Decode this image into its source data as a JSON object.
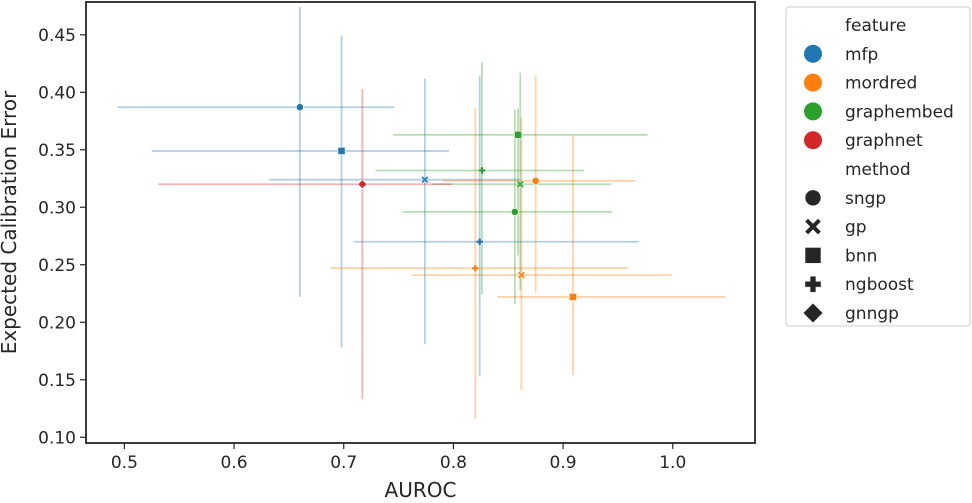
{
  "chart_data": {
    "type": "scatter",
    "title": "",
    "xlabel": "AUROC",
    "ylabel": "Expected Calibration Error",
    "xlim": [
      0.465,
      1.075
    ],
    "ylim": [
      0.095,
      0.4785
    ],
    "xticks": [
      "0.5",
      "0.6",
      "0.7",
      "0.8",
      "0.9",
      "1.0"
    ],
    "yticks": [
      "0.10",
      "0.15",
      "0.20",
      "0.25",
      "0.30",
      "0.35",
      "0.40",
      "0.45"
    ],
    "xtick_values": [
      0.5,
      0.6,
      0.7,
      0.8,
      0.9,
      1.0
    ],
    "ytick_values": [
      0.1,
      0.15,
      0.2,
      0.25,
      0.3,
      0.35,
      0.4,
      0.45
    ],
    "grid": false,
    "legend_position": "outside-right",
    "legend": {
      "hue_title": "feature",
      "hue_entries": [
        {
          "label": "mfp",
          "color": "#1f77b4"
        },
        {
          "label": "mordred",
          "color": "#ff7f0e"
        },
        {
          "label": "graphembed",
          "color": "#2ca02c"
        },
        {
          "label": "graphnet",
          "color": "#d62728"
        }
      ],
      "style_title": "method",
      "style_entries": [
        {
          "label": "sngp",
          "marker": "circle"
        },
        {
          "label": "gp",
          "marker": "x"
        },
        {
          "label": "bnn",
          "marker": "square"
        },
        {
          "label": "ngboost",
          "marker": "plus"
        },
        {
          "label": "gnngp",
          "marker": "diamond"
        }
      ]
    },
    "points": [
      {
        "feature": "mfp",
        "method": "sngp",
        "color": "#1f77b4",
        "x": 0.66,
        "y": 0.387,
        "x_err": [
          0.494,
          0.746
        ],
        "y_err": [
          0.222,
          0.474
        ]
      },
      {
        "feature": "mfp",
        "method": "bnn",
        "color": "#1f77b4",
        "x": 0.698,
        "y": 0.349,
        "x_err": [
          0.525,
          0.796
        ],
        "y_err": [
          0.178,
          0.449
        ]
      },
      {
        "feature": "mfp",
        "method": "gp",
        "color": "#1f77b4",
        "x": 0.774,
        "y": 0.324,
        "x_err": [
          0.632,
          0.86
        ],
        "y_err": [
          0.181,
          0.412
        ]
      },
      {
        "feature": "mfp",
        "method": "ngboost",
        "color": "#1f77b4",
        "x": 0.824,
        "y": 0.27,
        "x_err": [
          0.709,
          0.969
        ],
        "y_err": [
          0.153,
          0.414
        ]
      },
      {
        "feature": "mordred",
        "method": "sngp",
        "color": "#ff7f0e",
        "x": 0.875,
        "y": 0.323,
        "x_err": [
          0.79,
          0.966
        ],
        "y_err": [
          0.226,
          0.414
        ]
      },
      {
        "feature": "mordred",
        "method": "ngboost",
        "color": "#ff7f0e",
        "x": 0.82,
        "y": 0.247,
        "x_err": [
          0.688,
          0.959
        ],
        "y_err": [
          0.116,
          0.386
        ]
      },
      {
        "feature": "mordred",
        "method": "gp",
        "color": "#ff7f0e",
        "x": 0.862,
        "y": 0.241,
        "x_err": [
          0.762,
          0.999
        ],
        "y_err": [
          0.141,
          0.378
        ]
      },
      {
        "feature": "mordred",
        "method": "bnn",
        "color": "#ff7f0e",
        "x": 0.909,
        "y": 0.222,
        "x_err": [
          0.84,
          1.048
        ],
        "y_err": [
          0.154,
          0.362
        ]
      },
      {
        "feature": "graphembed",
        "method": "bnn",
        "color": "#2ca02c",
        "x": 0.859,
        "y": 0.363,
        "x_err": [
          0.745,
          0.977
        ],
        "y_err": [
          0.258,
          0.386
        ]
      },
      {
        "feature": "graphembed",
        "method": "ngboost",
        "color": "#2ca02c",
        "x": 0.826,
        "y": 0.332,
        "x_err": [
          0.729,
          0.919
        ],
        "y_err": [
          0.224,
          0.426
        ]
      },
      {
        "feature": "graphembed",
        "method": "gp",
        "color": "#2ca02c",
        "x": 0.861,
        "y": 0.32,
        "x_err": [
          0.781,
          0.944
        ],
        "y_err": [
          0.228,
          0.417
        ]
      },
      {
        "feature": "graphembed",
        "method": "sngp",
        "color": "#2ca02c",
        "x": 0.856,
        "y": 0.296,
        "x_err": [
          0.754,
          0.945
        ],
        "y_err": [
          0.216,
          0.385
        ]
      },
      {
        "feature": "graphnet",
        "method": "gnngp",
        "color": "#d62728",
        "x": 0.717,
        "y": 0.32,
        "x_err": [
          0.531,
          0.799
        ],
        "y_err": [
          0.133,
          0.403
        ]
      }
    ]
  }
}
